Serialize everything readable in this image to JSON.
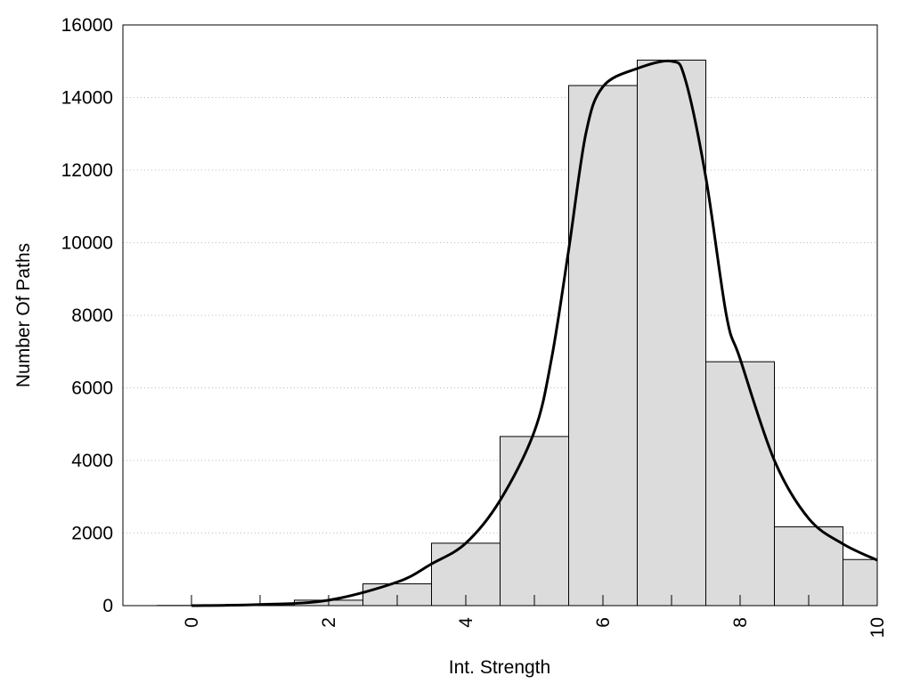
{
  "chart_data": {
    "type": "bar",
    "title": "",
    "xlabel": "Int. Strength",
    "ylabel": "Number Of Paths",
    "xlim": [
      -1,
      10
    ],
    "ylim": [
      0,
      16000
    ],
    "x_ticks": [
      "0",
      "2",
      "4",
      "6",
      "8",
      "10"
    ],
    "y_ticks": [
      "0",
      "2000",
      "4000",
      "6000",
      "8000",
      "10000",
      "12000",
      "14000",
      "16000"
    ],
    "grid": "horizontal-dotted",
    "bar_color": "#dcdcdc",
    "bins": [
      {
        "x": 0,
        "value": 5
      },
      {
        "x": 1,
        "value": 30
      },
      {
        "x": 2,
        "value": 150
      },
      {
        "x": 3,
        "value": 600
      },
      {
        "x": 4,
        "value": 1720
      },
      {
        "x": 5,
        "value": 4660
      },
      {
        "x": 6,
        "value": 14330
      },
      {
        "x": 7,
        "value": 15030
      },
      {
        "x": 8,
        "value": 6720
      },
      {
        "x": 9,
        "value": 2170
      },
      {
        "x": 10,
        "value": 1270
      }
    ],
    "curve": [
      [
        0,
        0
      ],
      [
        1,
        30
      ],
      [
        2,
        150
      ],
      [
        3,
        650
      ],
      [
        3.5,
        1150
      ],
      [
        4,
        1720
      ],
      [
        4.5,
        2900
      ],
      [
        5,
        4800
      ],
      [
        5.25,
        6800
      ],
      [
        5.5,
        9800
      ],
      [
        5.75,
        13000
      ],
      [
        6,
        14300
      ],
      [
        6.5,
        14800
      ],
      [
        7,
        15000
      ],
      [
        7.2,
        14500
      ],
      [
        7.5,
        11800
      ],
      [
        7.8,
        8000
      ],
      [
        8,
        6800
      ],
      [
        8.5,
        4000
      ],
      [
        9,
        2400
      ],
      [
        9.5,
        1700
      ],
      [
        10,
        1250
      ]
    ]
  }
}
